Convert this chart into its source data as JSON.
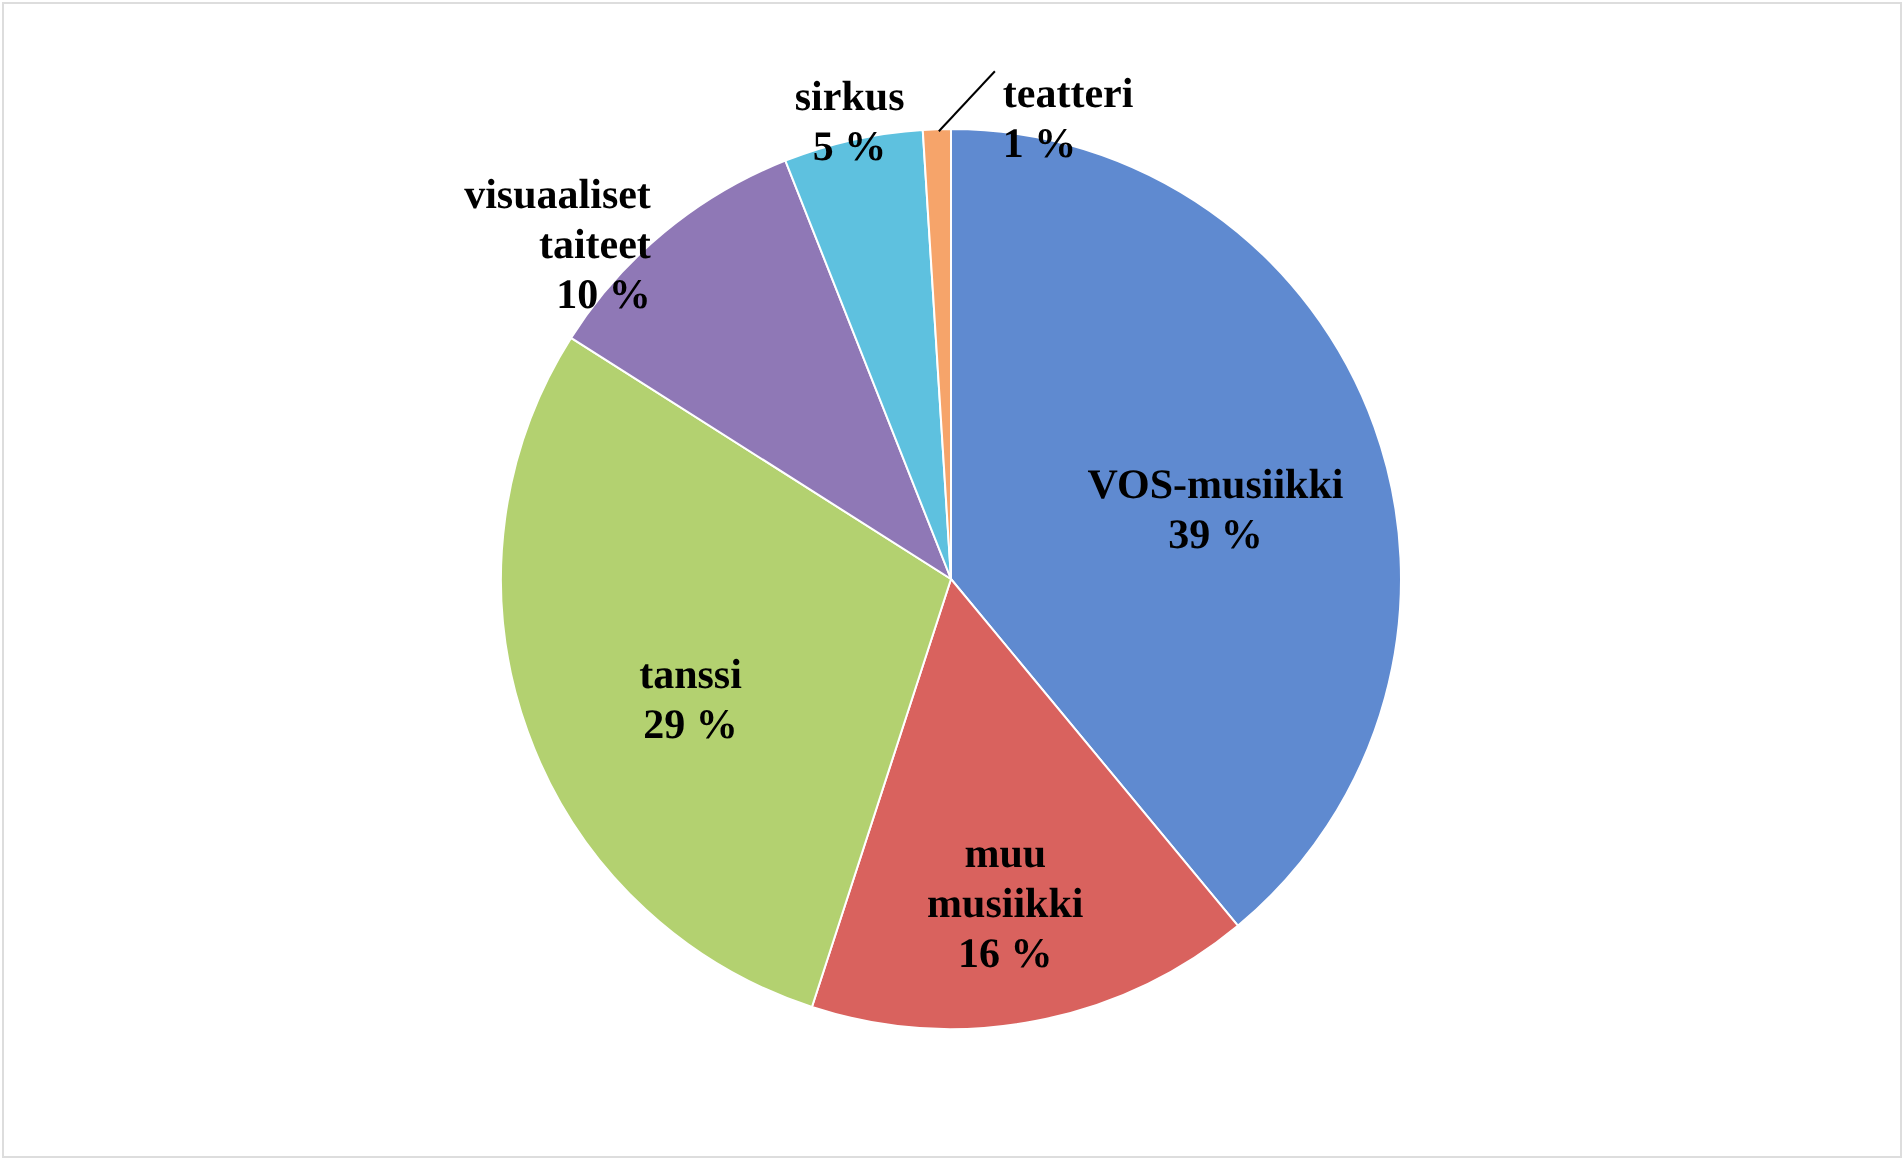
{
  "chart_data": {
    "type": "pie",
    "categories": [
      "VOS-musiikki",
      "muu musiikki",
      "tanssi",
      "visuaaliset taiteet",
      "sirkus",
      "teatteri"
    ],
    "values": [
      39,
      16,
      29,
      10,
      5,
      1
    ],
    "value_labels": [
      "39 %",
      "16 %",
      "29 %",
      "10 %",
      "5 %",
      "1 %"
    ],
    "colors": [
      "#5f8ad0",
      "#d9625e",
      "#b3d170",
      "#8f78b6",
      "#5ec1df",
      "#f6a46a"
    ]
  }
}
